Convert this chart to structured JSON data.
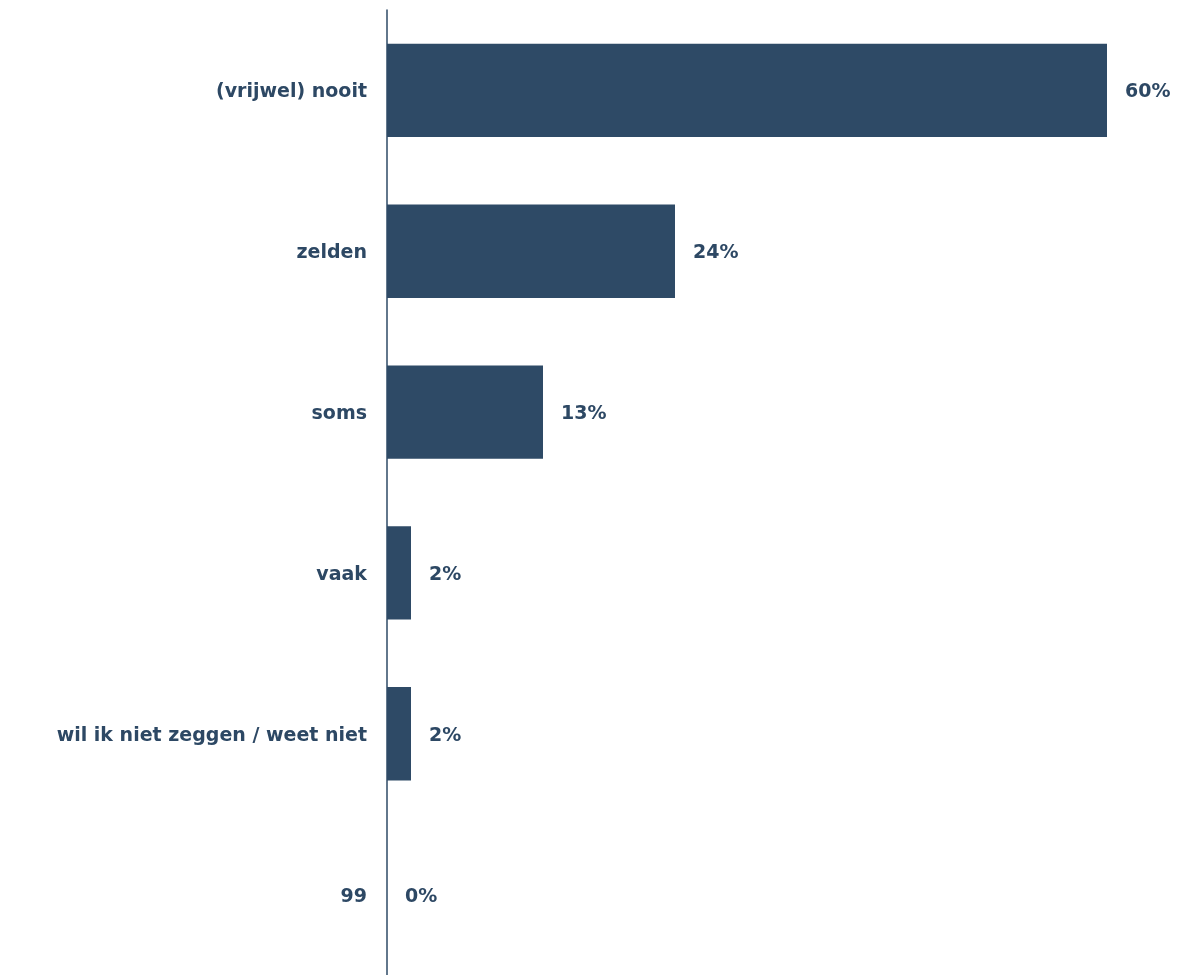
{
  "chart_data": {
    "type": "bar",
    "orientation": "horizontal",
    "categories": [
      "(vrijwel) nooit",
      "zelden",
      "soms",
      "vaak",
      "wil ik niet zeggen / weet niet",
      "99"
    ],
    "values": [
      60,
      24,
      13,
      2,
      2,
      0
    ],
    "value_labels": [
      "60%",
      "24%",
      "13%",
      "2%",
      "2%",
      "0%"
    ],
    "color": "#2e4a66"
  }
}
